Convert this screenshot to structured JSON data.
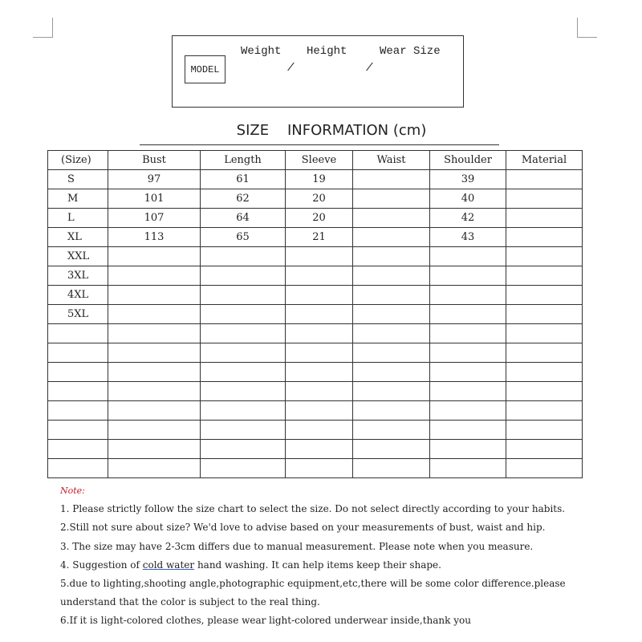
{
  "model": {
    "label": "MODEL",
    "weight": "Weight",
    "height": "Height",
    "wear_size": "Wear Size",
    "sep1": "/",
    "sep2": "/"
  },
  "title": "SIZE    INFORMATION (cm)",
  "table": {
    "headers": [
      "(Size)",
      "Bust",
      "Length",
      "Sleeve",
      "Waist",
      "Shoulder",
      "Material"
    ],
    "rows": [
      [
        "S",
        "97",
        "61",
        "19",
        "",
        "39",
        ""
      ],
      [
        "M",
        "101",
        "62",
        "20",
        "",
        "40",
        ""
      ],
      [
        "L",
        "107",
        "64",
        "20",
        "",
        "42",
        ""
      ],
      [
        "XL",
        "113",
        "65",
        "21",
        "",
        "43",
        ""
      ],
      [
        "XXL",
        "",
        "",
        "",
        "",
        "",
        ""
      ],
      [
        "3XL",
        "",
        "",
        "",
        "",
        "",
        ""
      ],
      [
        "4XL",
        "",
        "",
        "",
        "",
        "",
        ""
      ],
      [
        "5XL",
        "",
        "",
        "",
        "",
        "",
        ""
      ],
      [
        "",
        "",
        "",
        "",
        "",
        "",
        ""
      ],
      [
        "",
        "",
        "",
        "",
        "",
        "",
        ""
      ],
      [
        "",
        "",
        "",
        "",
        "",
        "",
        ""
      ],
      [
        "",
        "",
        "",
        "",
        "",
        "",
        ""
      ],
      [
        "",
        "",
        "",
        "",
        "",
        "",
        ""
      ],
      [
        "",
        "",
        "",
        "",
        "",
        "",
        ""
      ],
      [
        "",
        "",
        "",
        "",
        "",
        "",
        ""
      ],
      [
        "",
        "",
        "",
        "",
        "",
        "",
        ""
      ]
    ]
  },
  "notes": {
    "title": "Note:",
    "n1": "1. Please strictly follow the size chart to select the size. Do not select directly according to your habits.",
    "n2": "2.Still not sure about size? We'd love to advise based on your measurements of bust, waist and hip.",
    "n3": "3. The size may have 2-3cm differs due to manual measurement. Please note when you measure.",
    "n4_pre": "4. Suggestion of ",
    "n4_ul": "cold water",
    "n4_post": " hand washing. It can help items keep their shape.",
    "n5a": "5.due to lighting,shooting angle,photographic equipment,etc,there will be some color difference.please",
    "n5b": "understand that the color is subject to the real thing.",
    "n6": "6.If it is light-colored clothes, please wear light-colored underwear inside,thank you"
  }
}
